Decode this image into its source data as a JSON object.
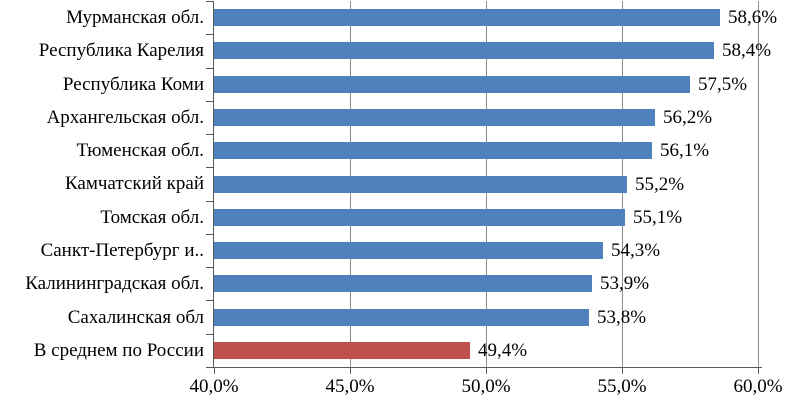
{
  "chart_data": {
    "type": "bar",
    "orientation": "horizontal",
    "title": "",
    "xlabel": "",
    "ylabel": "",
    "xlim": [
      40,
      60
    ],
    "grid": true,
    "value_suffix": "%",
    "decimal_separator": ",",
    "x_ticks": [
      {
        "value": 40,
        "label": "40,0%"
      },
      {
        "value": 45,
        "label": "45,0%"
      },
      {
        "value": 50,
        "label": "50,0%"
      },
      {
        "value": 55,
        "label": "55,0%"
      },
      {
        "value": 60,
        "label": "60,0%"
      }
    ],
    "bars": [
      {
        "category": "Мурманская обл.",
        "value": 58.6,
        "label": "58,6%",
        "color": "#4F81BD"
      },
      {
        "category": "Республика Карелия",
        "value": 58.4,
        "label": "58,4%",
        "color": "#4F81BD"
      },
      {
        "category": "Республика Коми",
        "value": 57.5,
        "label": "57,5%",
        "color": "#4F81BD"
      },
      {
        "category": "Архангельская обл.",
        "value": 56.2,
        "label": "56,2%",
        "color": "#4F81BD"
      },
      {
        "category": "Тюменская обл.",
        "value": 56.1,
        "label": "56,1%",
        "color": "#4F81BD"
      },
      {
        "category": "Камчатский край",
        "value": 55.2,
        "label": "55,2%",
        "color": "#4F81BD"
      },
      {
        "category": "Томская обл.",
        "value": 55.1,
        "label": "55,1%",
        "color": "#4F81BD"
      },
      {
        "category": "Санкт-Петербург и..",
        "value": 54.3,
        "label": "54,3%",
        "color": "#4F81BD"
      },
      {
        "category": "Калининградская обл.",
        "value": 53.9,
        "label": "53,9%",
        "color": "#4F81BD"
      },
      {
        "category": "Сахалинская обл",
        "value": 53.8,
        "label": "53,8%",
        "color": "#4F81BD"
      },
      {
        "category": "В среднем по России",
        "value": 49.4,
        "label": "49,4%",
        "color": "#C0504D"
      }
    ],
    "colors": {
      "default_bar": "#4F81BD",
      "highlight_bar": "#C0504D",
      "gridline": "#8C8C8C",
      "axis": "#595959",
      "text": "#000000",
      "background": "#FFFFFF"
    }
  }
}
